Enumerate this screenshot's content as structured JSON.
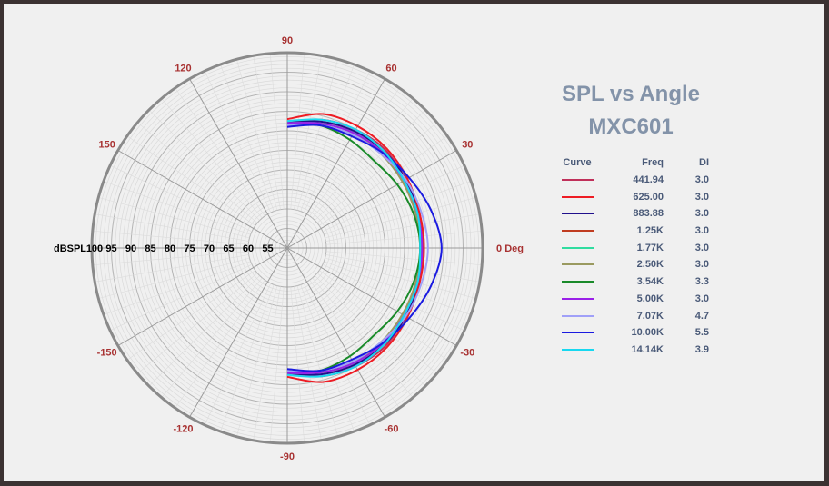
{
  "chart_data": {
    "type": "polar-line",
    "title": "SPL vs Angle",
    "subtitle": "MXC601",
    "radial_axis_label": "dBSPL",
    "radial_ticks": [
      100,
      95,
      90,
      85,
      80,
      75,
      70,
      65,
      60,
      55
    ],
    "radial_range": [
      50,
      100
    ],
    "angle_unit_label": "0 Deg",
    "angle_ticks": [
      {
        "a": 90,
        "t": "90"
      },
      {
        "a": 60,
        "t": "60"
      },
      {
        "a": 30,
        "t": "30"
      },
      {
        "a": 0,
        "t": "0 Deg"
      },
      {
        "a": -30,
        "t": "-30"
      },
      {
        "a": -60,
        "t": "-60"
      },
      {
        "a": -90,
        "t": "-90"
      },
      {
        "a": -120,
        "t": "-120"
      },
      {
        "a": -150,
        "t": "-150"
      },
      {
        "a": 120,
        "t": "120"
      },
      {
        "a": 150,
        "t": "150"
      }
    ],
    "angles": [
      90,
      75,
      60,
      45,
      30,
      15,
      0,
      -15,
      -30,
      -45,
      -60,
      -75,
      -90
    ],
    "legend_headers": {
      "curve": "Curve",
      "freq": "Freq",
      "di": "DI"
    },
    "series": [
      {
        "freq": "441.94",
        "di": "3.0",
        "color": "#c0305a",
        "values": [
          82,
          84,
          85,
          85.5,
          85,
          85,
          85,
          85,
          85,
          85.5,
          85,
          84,
          82
        ]
      },
      {
        "freq": "625.00",
        "di": "3.0",
        "color": "#ee1c24",
        "values": [
          83,
          85.5,
          86,
          86,
          85.5,
          85,
          85,
          85,
          85.5,
          86,
          86,
          85.5,
          83
        ]
      },
      {
        "freq": "883.88",
        "di": "3.0",
        "color": "#20108c",
        "values": [
          82,
          83.5,
          84.5,
          85,
          85,
          84.5,
          84.5,
          84.5,
          85,
          85,
          84.5,
          83.5,
          82
        ]
      },
      {
        "freq": "1.25K",
        "di": "3.0",
        "color": "#c03c20",
        "values": [
          81.5,
          83,
          84,
          84.5,
          84.5,
          84.5,
          84.5,
          84.5,
          84.5,
          84.5,
          84,
          83,
          81.5
        ]
      },
      {
        "freq": "1.77K",
        "di": "3.0",
        "color": "#30dca0",
        "values": [
          82,
          83,
          84,
          84.5,
          84.5,
          84,
          84,
          84,
          84.5,
          84.5,
          84,
          83,
          82
        ]
      },
      {
        "freq": "2.50K",
        "di": "3.0",
        "color": "#9a9a60",
        "values": [
          82,
          82.5,
          83.5,
          84,
          84,
          84,
          84,
          84,
          84,
          84,
          83.5,
          82.5,
          82
        ]
      },
      {
        "freq": "3.54K",
        "di": "3.3",
        "color": "#1a8a2a",
        "values": [
          82,
          82.5,
          82,
          81.5,
          82.5,
          83.5,
          84,
          83.5,
          82.5,
          81.5,
          82,
          82.5,
          82
        ]
      },
      {
        "freq": "5.00K",
        "di": "3.0",
        "color": "#9a20e8",
        "values": [
          82,
          83,
          84,
          84.5,
          84.5,
          84.5,
          84.5,
          84.5,
          84.5,
          84.5,
          84,
          83,
          82
        ]
      },
      {
        "freq": "7.07K",
        "di": "4.7",
        "color": "#a0a0f8",
        "values": [
          81.5,
          82.5,
          83.5,
          84,
          85,
          85.5,
          86,
          85.5,
          85,
          84,
          83.5,
          82.5,
          81.5
        ]
      },
      {
        "freq": "10.00K",
        "di": "5.5",
        "color": "#1a1ae0",
        "values": [
          81,
          82.5,
          83,
          84.5,
          86,
          88,
          89.5,
          88,
          86,
          84.5,
          83,
          82.5,
          81
        ]
      },
      {
        "freq": "14.14K",
        "di": "3.9",
        "color": "#18d8f0",
        "values": [
          82.5,
          84,
          85,
          85,
          84.5,
          84.5,
          84,
          84.5,
          84.5,
          85,
          85,
          84,
          82.5
        ]
      }
    ]
  }
}
